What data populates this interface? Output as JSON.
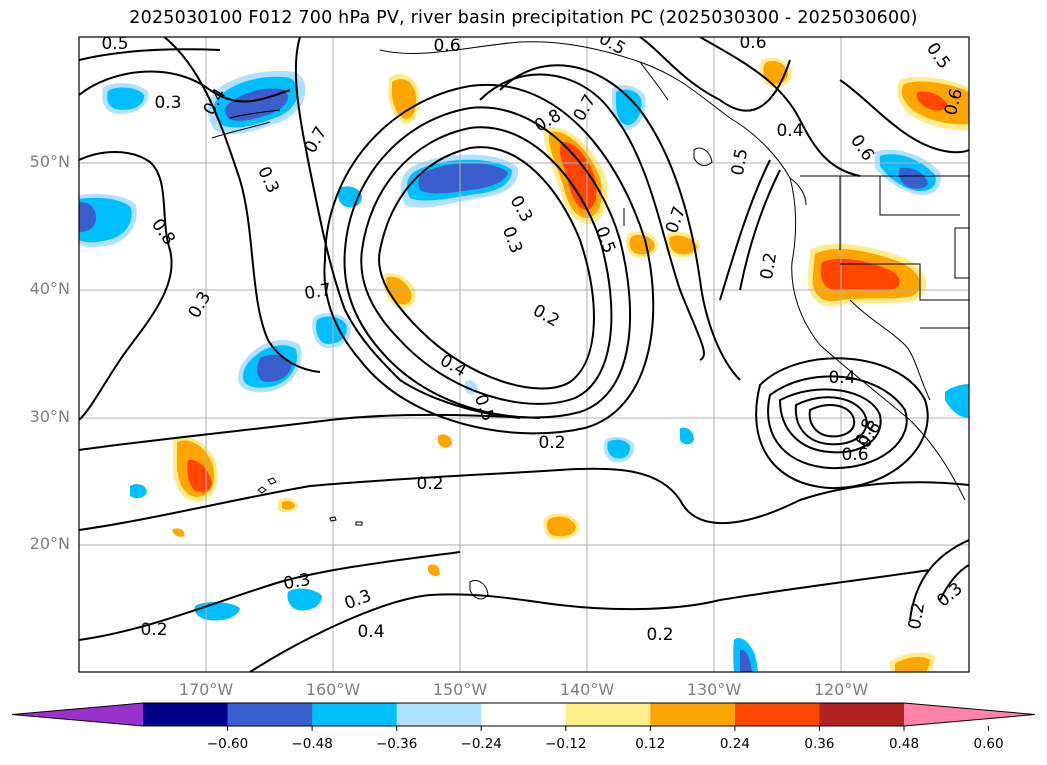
{
  "title": "2025030100 F012 700 hPa PV, river basin precipitation PC (2025030300 - 2025030600)",
  "lat_labels": [
    "50°N",
    "40°N",
    "30°N",
    "20°N"
  ],
  "lon_labels": [
    "170°W",
    "160°W",
    "150°W",
    "140°W",
    "130°W",
    "120°W"
  ],
  "colorbar": {
    "ticks": [
      "−0.60",
      "−0.48",
      "−0.36",
      "−0.24",
      "−0.12",
      "0.12",
      "0.24",
      "0.36",
      "0.48",
      "0.60"
    ],
    "colors": [
      "#9932cc",
      "#00008b",
      "#3a5fcd",
      "#00bfff",
      "#b0e2ff",
      "#ffffff",
      "#ffec8b",
      "#ffa500",
      "#ff4500",
      "#b22222",
      "#ff82ab"
    ]
  },
  "contour_labels": [
    "0.5",
    "0.3",
    "0.4",
    "0.8",
    "0.7",
    "0.3",
    "0.3",
    "0.7",
    "0.6",
    "0.5",
    "0.3",
    "0.8",
    "0.7",
    "0.5",
    "0.2",
    "0.4",
    "0.5",
    "0.3",
    "0.2",
    "0.2",
    "0.3",
    "0.4",
    "0.2",
    "0.5",
    "0.7",
    "0.5",
    "0.6",
    "0.4",
    "0.6",
    "0.6",
    "0.6",
    "0.2",
    "0.4",
    "0.8",
    "0.6",
    "0.3",
    "0.2",
    "0.3",
    "0.2"
  ]
}
